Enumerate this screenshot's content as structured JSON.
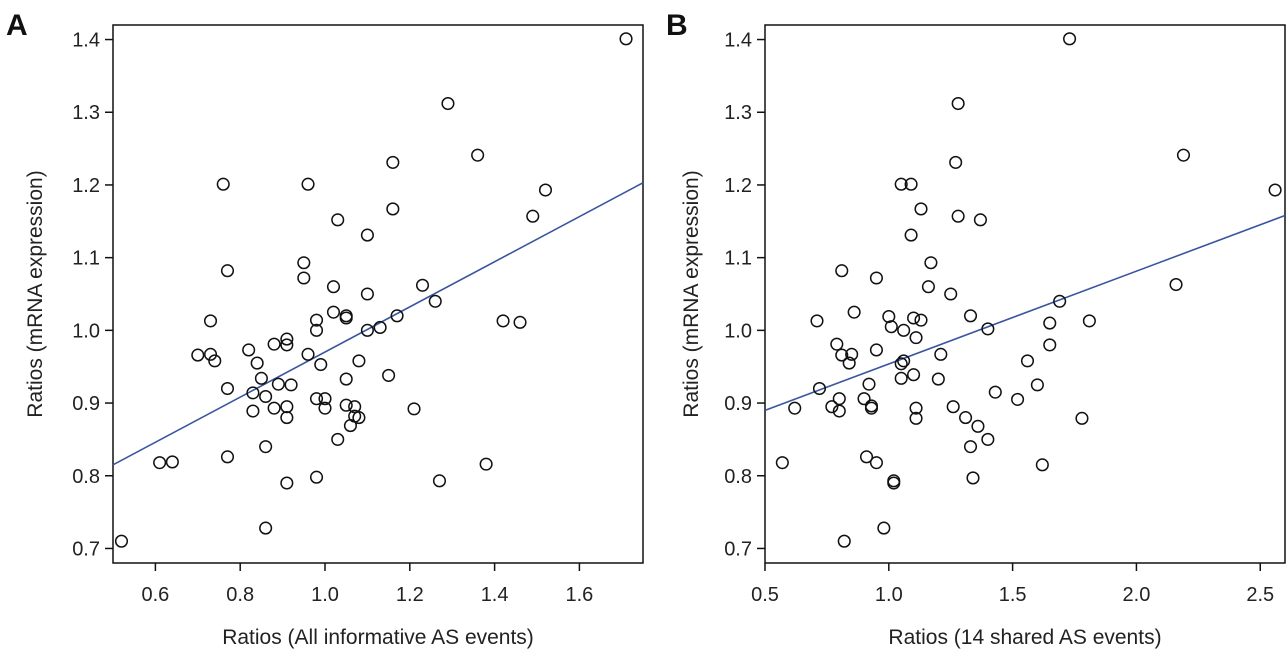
{
  "chart_data": [
    {
      "panel": "A",
      "type": "scatter",
      "xlabel": "Ratios (All informative AS events)",
      "ylabel": "Ratios (mRNA expression)",
      "xlim": [
        0.5,
        1.75
      ],
      "ylim": [
        0.68,
        1.42
      ],
      "xticks": [
        0.6,
        0.8,
        1.0,
        1.2,
        1.4,
        1.6
      ],
      "xtick_labels": [
        "0.6",
        "0.8",
        "1.0",
        "1.2",
        "1.4",
        "1.6"
      ],
      "yticks": [
        0.7,
        0.8,
        0.9,
        1.0,
        1.1,
        1.2,
        1.3,
        1.4
      ],
      "ytick_labels": [
        "0.7",
        "0.8",
        "0.9",
        "1.0",
        "1.1",
        "1.2",
        "1.3",
        "1.4"
      ],
      "grid": false,
      "colors": {
        "points": "#111111",
        "fit_line": "#3a55a0"
      },
      "fit_line": [
        [
          0.5,
          0.815
        ],
        [
          1.75,
          1.203
        ]
      ],
      "points": [
        [
          0.52,
          0.71
        ],
        [
          0.61,
          0.818
        ],
        [
          0.64,
          0.819
        ],
        [
          0.7,
          0.966
        ],
        [
          0.73,
          1.013
        ],
        [
          0.73,
          0.967
        ],
        [
          0.74,
          0.958
        ],
        [
          0.76,
          1.201
        ],
        [
          0.77,
          1.082
        ],
        [
          0.77,
          0.92
        ],
        [
          0.77,
          0.826
        ],
        [
          0.82,
          0.973
        ],
        [
          0.83,
          0.914
        ],
        [
          0.83,
          0.889
        ],
        [
          0.84,
          0.955
        ],
        [
          0.85,
          0.934
        ],
        [
          0.86,
          0.909
        ],
        [
          0.86,
          0.84
        ],
        [
          0.86,
          0.728
        ],
        [
          0.88,
          0.981
        ],
        [
          0.88,
          0.893
        ],
        [
          0.89,
          0.926
        ],
        [
          0.91,
          0.988
        ],
        [
          0.91,
          0.98
        ],
        [
          0.91,
          0.88
        ],
        [
          0.91,
          0.895
        ],
        [
          0.91,
          0.79
        ],
        [
          0.92,
          0.925
        ],
        [
          0.95,
          1.093
        ],
        [
          0.95,
          1.072
        ],
        [
          0.96,
          1.201
        ],
        [
          0.96,
          0.967
        ],
        [
          0.98,
          1.014
        ],
        [
          0.98,
          1.0
        ],
        [
          0.98,
          0.906
        ],
        [
          0.98,
          0.798
        ],
        [
          0.99,
          0.953
        ],
        [
          1.0,
          0.906
        ],
        [
          1.0,
          0.893
        ],
        [
          1.02,
          1.06
        ],
        [
          1.02,
          1.025
        ],
        [
          1.03,
          1.152
        ],
        [
          1.03,
          0.85
        ],
        [
          1.05,
          1.02
        ],
        [
          1.05,
          1.017
        ],
        [
          1.05,
          0.933
        ],
        [
          1.05,
          0.897
        ],
        [
          1.06,
          0.869
        ],
        [
          1.07,
          0.895
        ],
        [
          1.07,
          0.882
        ],
        [
          1.08,
          0.88
        ],
        [
          1.08,
          0.958
        ],
        [
          1.1,
          1.131
        ],
        [
          1.1,
          1.05
        ],
        [
          1.1,
          1.0
        ],
        [
          1.13,
          1.004
        ],
        [
          1.15,
          0.938
        ],
        [
          1.16,
          1.231
        ],
        [
          1.16,
          1.167
        ],
        [
          1.17,
          1.02
        ],
        [
          1.21,
          0.892
        ],
        [
          1.23,
          1.062
        ],
        [
          1.26,
          1.04
        ],
        [
          1.27,
          0.793
        ],
        [
          1.29,
          1.312
        ],
        [
          1.36,
          1.241
        ],
        [
          1.38,
          0.816
        ],
        [
          1.42,
          1.013
        ],
        [
          1.46,
          1.011
        ],
        [
          1.49,
          1.157
        ],
        [
          1.52,
          1.193
        ],
        [
          1.71,
          1.401
        ]
      ]
    },
    {
      "panel": "B",
      "type": "scatter",
      "xlabel": "Ratios (14 shared AS events)",
      "ylabel": "Ratios (mRNA expression)",
      "xlim": [
        0.5,
        2.6
      ],
      "ylim": [
        0.68,
        1.42
      ],
      "xticks": [
        0.5,
        1.0,
        1.5,
        2.0,
        2.5
      ],
      "xtick_labels": [
        "0.5",
        "1.0",
        "1.5",
        "2.0",
        "2.5"
      ],
      "yticks": [
        0.7,
        0.8,
        0.9,
        1.0,
        1.1,
        1.2,
        1.3,
        1.4
      ],
      "ytick_labels": [
        "0.7",
        "0.8",
        "0.9",
        "1.0",
        "1.1",
        "1.2",
        "1.3",
        "1.4"
      ],
      "grid": false,
      "colors": {
        "points": "#111111",
        "fit_line": "#3a55a0"
      },
      "fit_line": [
        [
          0.5,
          0.89
        ],
        [
          2.6,
          1.158
        ]
      ],
      "points": [
        [
          0.57,
          0.818
        ],
        [
          0.62,
          0.893
        ],
        [
          0.71,
          1.013
        ],
        [
          0.72,
          0.92
        ],
        [
          0.77,
          0.895
        ],
        [
          0.79,
          0.981
        ],
        [
          0.8,
          0.906
        ],
        [
          0.8,
          0.889
        ],
        [
          0.81,
          1.082
        ],
        [
          0.81,
          0.966
        ],
        [
          0.82,
          0.71
        ],
        [
          0.84,
          0.955
        ],
        [
          0.85,
          0.967
        ],
        [
          0.86,
          1.025
        ],
        [
          0.9,
          0.906
        ],
        [
          0.91,
          0.826
        ],
        [
          0.92,
          0.926
        ],
        [
          0.93,
          0.896
        ],
        [
          0.93,
          0.893
        ],
        [
          0.95,
          1.072
        ],
        [
          0.95,
          0.973
        ],
        [
          0.95,
          0.818
        ],
        [
          0.98,
          0.728
        ],
        [
          1.0,
          1.019
        ],
        [
          1.01,
          1.005
        ],
        [
          1.02,
          0.793
        ],
        [
          1.02,
          0.79
        ],
        [
          1.05,
          1.201
        ],
        [
          1.05,
          0.954
        ],
        [
          1.05,
          0.934
        ],
        [
          1.06,
          1.0
        ],
        [
          1.06,
          0.958
        ],
        [
          1.09,
          1.201
        ],
        [
          1.09,
          1.131
        ],
        [
          1.1,
          1.017
        ],
        [
          1.1,
          0.939
        ],
        [
          1.11,
          0.99
        ],
        [
          1.11,
          0.893
        ],
        [
          1.11,
          0.879
        ],
        [
          1.13,
          1.167
        ],
        [
          1.13,
          1.014
        ],
        [
          1.16,
          1.06
        ],
        [
          1.17,
          1.093
        ],
        [
          1.2,
          0.933
        ],
        [
          1.21,
          0.967
        ],
        [
          1.25,
          1.05
        ],
        [
          1.26,
          0.895
        ],
        [
          1.27,
          1.231
        ],
        [
          1.28,
          1.312
        ],
        [
          1.28,
          1.157
        ],
        [
          1.31,
          0.88
        ],
        [
          1.33,
          1.02
        ],
        [
          1.33,
          0.84
        ],
        [
          1.34,
          0.797
        ],
        [
          1.36,
          0.868
        ],
        [
          1.37,
          1.152
        ],
        [
          1.4,
          1.002
        ],
        [
          1.4,
          0.85
        ],
        [
          1.43,
          0.915
        ],
        [
          1.52,
          0.905
        ],
        [
          1.56,
          0.958
        ],
        [
          1.6,
          0.925
        ],
        [
          1.62,
          0.815
        ],
        [
          1.65,
          1.01
        ],
        [
          1.65,
          0.98
        ],
        [
          1.69,
          1.04
        ],
        [
          1.73,
          1.401
        ],
        [
          1.78,
          0.879
        ],
        [
          1.81,
          1.013
        ],
        [
          2.16,
          1.063
        ],
        [
          2.19,
          1.241
        ],
        [
          2.56,
          1.193
        ]
      ]
    }
  ],
  "panel_labels": [
    "A",
    "B"
  ]
}
